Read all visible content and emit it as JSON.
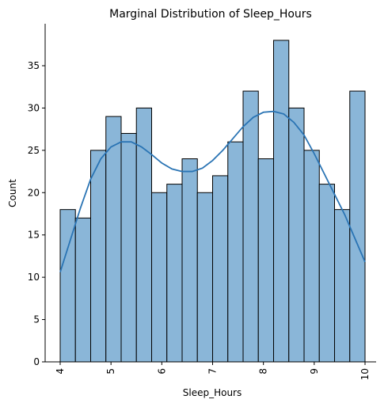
{
  "chart_data": {
    "type": "bar",
    "title": "Marginal Distribution of Sleep_Hours",
    "xlabel": "Sleep_Hours",
    "ylabel": "Count",
    "xlim": [
      4,
      10
    ],
    "ylim": [
      0,
      40
    ],
    "x_ticks": [
      4,
      5,
      6,
      7,
      8,
      9,
      10
    ],
    "y_ticks": [
      0,
      5,
      10,
      15,
      20,
      25,
      30,
      35
    ],
    "bin_edges": [
      4.0,
      4.3,
      4.6,
      4.9,
      5.2,
      5.5,
      5.8,
      6.1,
      6.4,
      6.7,
      7.0,
      7.3,
      7.6,
      7.9,
      8.2,
      8.5,
      8.8,
      9.1,
      9.4,
      9.7,
      10.0
    ],
    "values": [
      18,
      17,
      25,
      29,
      27,
      30,
      20,
      21,
      24,
      20,
      22,
      26,
      32,
      24,
      38,
      30,
      25,
      21,
      18,
      32
    ],
    "kde": {
      "x": [
        4.0,
        4.2,
        4.4,
        4.6,
        4.8,
        5.0,
        5.2,
        5.4,
        5.6,
        5.8,
        6.0,
        6.2,
        6.4,
        6.6,
        6.8,
        7.0,
        7.2,
        7.4,
        7.6,
        7.8,
        8.0,
        8.2,
        8.4,
        8.6,
        8.8,
        9.0,
        9.2,
        9.4,
        9.6,
        9.8,
        10.0
      ],
      "y": [
        10.6,
        14.4,
        18.2,
        21.6,
        24.0,
        25.4,
        26.0,
        26.0,
        25.4,
        24.5,
        23.5,
        22.8,
        22.5,
        22.5,
        22.9,
        23.8,
        25.0,
        26.4,
        27.8,
        28.9,
        29.5,
        29.6,
        29.3,
        28.3,
        26.8,
        24.6,
        22.2,
        19.8,
        17.4,
        14.6,
        11.8
      ]
    },
    "bar_color": "#8ab6d8",
    "bar_edge_color": "#000000",
    "line_color": "#2a74b4",
    "grid": false,
    "legend": "none"
  }
}
